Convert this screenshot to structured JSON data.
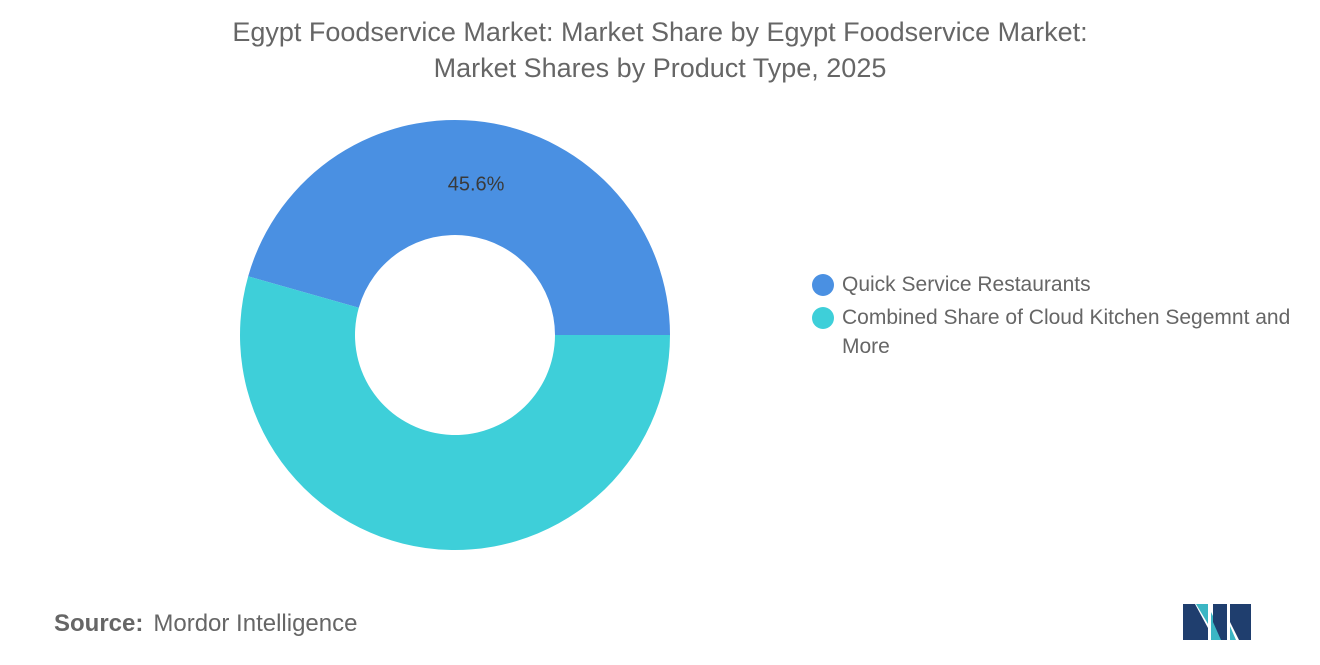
{
  "chart_data": {
    "type": "pie",
    "donut": true,
    "title_lines": [
      "Egypt Foodservice Market: Market Share by Egypt Foodservice Market:",
      "Market Shares by Product Type, 2025"
    ],
    "categories": [
      "Quick Service Restaurants",
      "Combined Share of Cloud Kitchen Segemnt and More"
    ],
    "values": [
      45.6,
      54.4
    ],
    "data_labels": [
      "45.6%",
      ""
    ],
    "colors": [
      "#4a90e2",
      "#3ecfd9"
    ],
    "legend_placement": "right"
  },
  "source": {
    "label": "Source:",
    "value": "Mordor Intelligence"
  },
  "logo": {
    "icon": "mordor-intelligence-logo-icon",
    "colors": [
      "#1f3e6e",
      "#3bb6c4"
    ]
  }
}
